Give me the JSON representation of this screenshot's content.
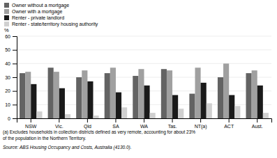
{
  "chart_data": {
    "type": "bar",
    "categories": [
      "NSW",
      "Vic.",
      "Qld",
      "SA",
      "WA",
      "Tas.",
      "NT(a)",
      "ACT",
      "Aust."
    ],
    "series": [
      {
        "name": "Owner without a mortgage",
        "color": "#636363",
        "values": [
          33,
          37,
          30,
          33,
          31,
          36,
          18,
          30,
          33
        ]
      },
      {
        "name": "Owner with a mortgage",
        "color": "#a0a0a0",
        "values": [
          34,
          34,
          35,
          37,
          36,
          35,
          37,
          40,
          35
        ]
      },
      {
        "name": "Renter - private landlord",
        "color": "#1a1a1a",
        "values": [
          25,
          22,
          27,
          19,
          24,
          17,
          26,
          17,
          24
        ]
      },
      {
        "name": "Renter - state/territory housing authority",
        "color": "#d0d0d0",
        "values": [
          5,
          3,
          2,
          8,
          4,
          7,
          11,
          9,
          4
        ]
      }
    ],
    "y_label": "%",
    "ylim": [
      0,
      60
    ],
    "yticks": [
      0,
      10,
      20,
      30,
      40,
      50,
      60
    ],
    "grid": true,
    "legend": "top",
    "annotations": [
      "(a) Excludes households in collection districts defined as very remote, accounting for about 23%",
      "of the population in the Northern Territory.",
      "Source: ABS Housing Occupancy and Costs, Australia (4130.0)."
    ]
  }
}
